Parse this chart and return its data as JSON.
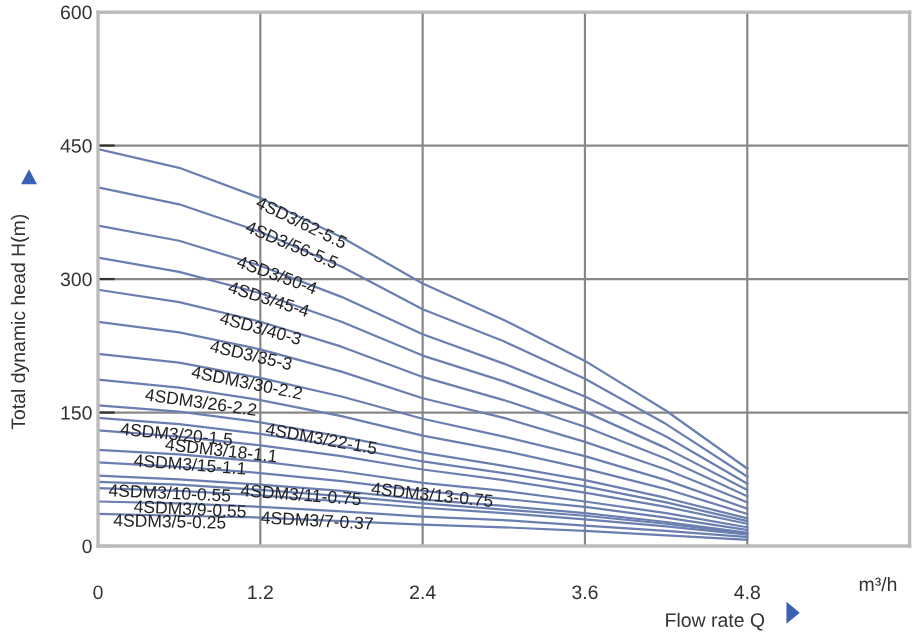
{
  "chart_data": {
    "type": "line",
    "xlabel": "Flow rate Q",
    "ylabel": "Total dynamic head H(m)",
    "x": [
      0,
      0.6,
      1.2,
      1.8,
      2.4,
      3.0,
      3.6,
      4.2,
      4.8
    ],
    "xlim": [
      0,
      6.0
    ],
    "xticks": [
      0,
      1.2,
      2.4,
      3.6,
      4.8
    ],
    "ylim": [
      0,
      600
    ],
    "yticks": [
      0,
      150,
      300,
      450,
      600
    ],
    "grid": true,
    "marker": "none",
    "line_style": "solid",
    "series": [
      {
        "color": "#6a7fb0",
        "values": [
          446,
          425,
          391,
          347,
          295,
          254,
          208,
          152,
          87
        ]
      },
      {
        "color": "#6a7fb0",
        "values": [
          403,
          384,
          353,
          314,
          266,
          230,
          188,
          137,
          78
        ]
      },
      {
        "color": "#6a7fb0",
        "values": [
          360,
          343,
          315,
          280,
          238,
          205,
          168,
          123,
          70
        ]
      },
      {
        "color": "#6a7fb0",
        "values": [
          324,
          308,
          284,
          252,
          214,
          185,
          151,
          110,
          63
        ]
      },
      {
        "color": "#6a7fb0",
        "values": [
          288,
          274,
          252,
          224,
          190,
          164,
          134,
          98,
          56
        ]
      },
      {
        "color": "#6a7fb0",
        "values": [
          252,
          240,
          221,
          196,
          166,
          144,
          117,
          86,
          49
        ]
      },
      {
        "color": "#6a7fb0",
        "values": [
          216,
          206,
          189,
          168,
          143,
          123,
          101,
          74,
          42
        ]
      },
      {
        "color": "#6a7fb0",
        "values": [
          187,
          178,
          164,
          146,
          124,
          107,
          87,
          64,
          36
        ]
      },
      {
        "color": "#6a7fb0",
        "values": [
          158,
          151,
          139,
          123,
          105,
          90,
          74,
          54,
          31
        ]
      },
      {
        "color": "#6a7fb0",
        "values": [
          144,
          137,
          126,
          112,
          95,
          82,
          67,
          49,
          28
        ]
      },
      {
        "color": "#6a7fb0",
        "values": [
          130,
          123,
          113,
          101,
          86,
          74,
          60,
          44,
          25
        ]
      },
      {
        "color": "#6a7fb0",
        "values": [
          108,
          103,
          95,
          84,
          71,
          62,
          50,
          37,
          21
        ]
      },
      {
        "color": "#6a7fb0",
        "values": [
          94,
          89,
          82,
          73,
          62,
          53,
          44,
          32,
          18
        ]
      },
      {
        "color": "#6a7fb0",
        "values": [
          79,
          75,
          69,
          62,
          52,
          45,
          37,
          27,
          15
        ]
      },
      {
        "color": "#6a7fb0",
        "values": [
          72,
          69,
          63,
          56,
          48,
          41,
          34,
          25,
          14
        ]
      },
      {
        "color": "#6a7fb0",
        "values": [
          65,
          62,
          57,
          50,
          43,
          37,
          30,
          22,
          13
        ]
      },
      {
        "color": "#6a7fb0",
        "values": [
          50,
          48,
          44,
          39,
          33,
          29,
          23,
          17,
          10
        ]
      },
      {
        "color": "#6a7fb0",
        "values": [
          36,
          34,
          32,
          28,
          24,
          21,
          17,
          12,
          7
        ]
      }
    ],
    "annotations": [
      {
        "text": "4SD3/62-5.5",
        "x": 1.5,
        "y": 362
      },
      {
        "text": "4SD3/56-5.5",
        "x": 1.43,
        "y": 337
      },
      {
        "text": "4SD3/50-4",
        "x": 1.32,
        "y": 303
      },
      {
        "text": "4SD3/45-4",
        "x": 1.26,
        "y": 276
      },
      {
        "text": "4SD3/40-3",
        "x": 1.2,
        "y": 243
      },
      {
        "text": "4SD3/35-3",
        "x": 1.13,
        "y": 213
      },
      {
        "text": "4SDM3/30-2.2",
        "x": 1.1,
        "y": 182
      },
      {
        "text": "4SDM3/26-2.2",
        "x": 0.76,
        "y": 160
      },
      {
        "text": "4SDM3/22-1.5",
        "x": 1.65,
        "y": 119
      },
      {
        "text": "4SDM3/20-1.5",
        "x": 0.58,
        "y": 124
      },
      {
        "text": "4SDM3/18-1.1",
        "x": 0.91,
        "y": 106
      },
      {
        "text": "4SDM3/15-1.1",
        "x": 0.68,
        "y": 90
      },
      {
        "text": "4SDM3/13-0.75",
        "x": 2.47,
        "y": 56
      },
      {
        "text": "4SDM3/11-0.75",
        "x": 1.5,
        "y": 56
      },
      {
        "text": "4SDM3/10-0.55",
        "x": 0.53,
        "y": 58
      },
      {
        "text": "4SDM3/9-0.55",
        "x": 0.68,
        "y": 40
      },
      {
        "text": "4SDM3/7-0.37",
        "x": 1.62,
        "y": 27
      },
      {
        "text": "4SDM3/5-0.25",
        "x": 0.53,
        "y": 26
      },
      "m³/h"
    ]
  }
}
